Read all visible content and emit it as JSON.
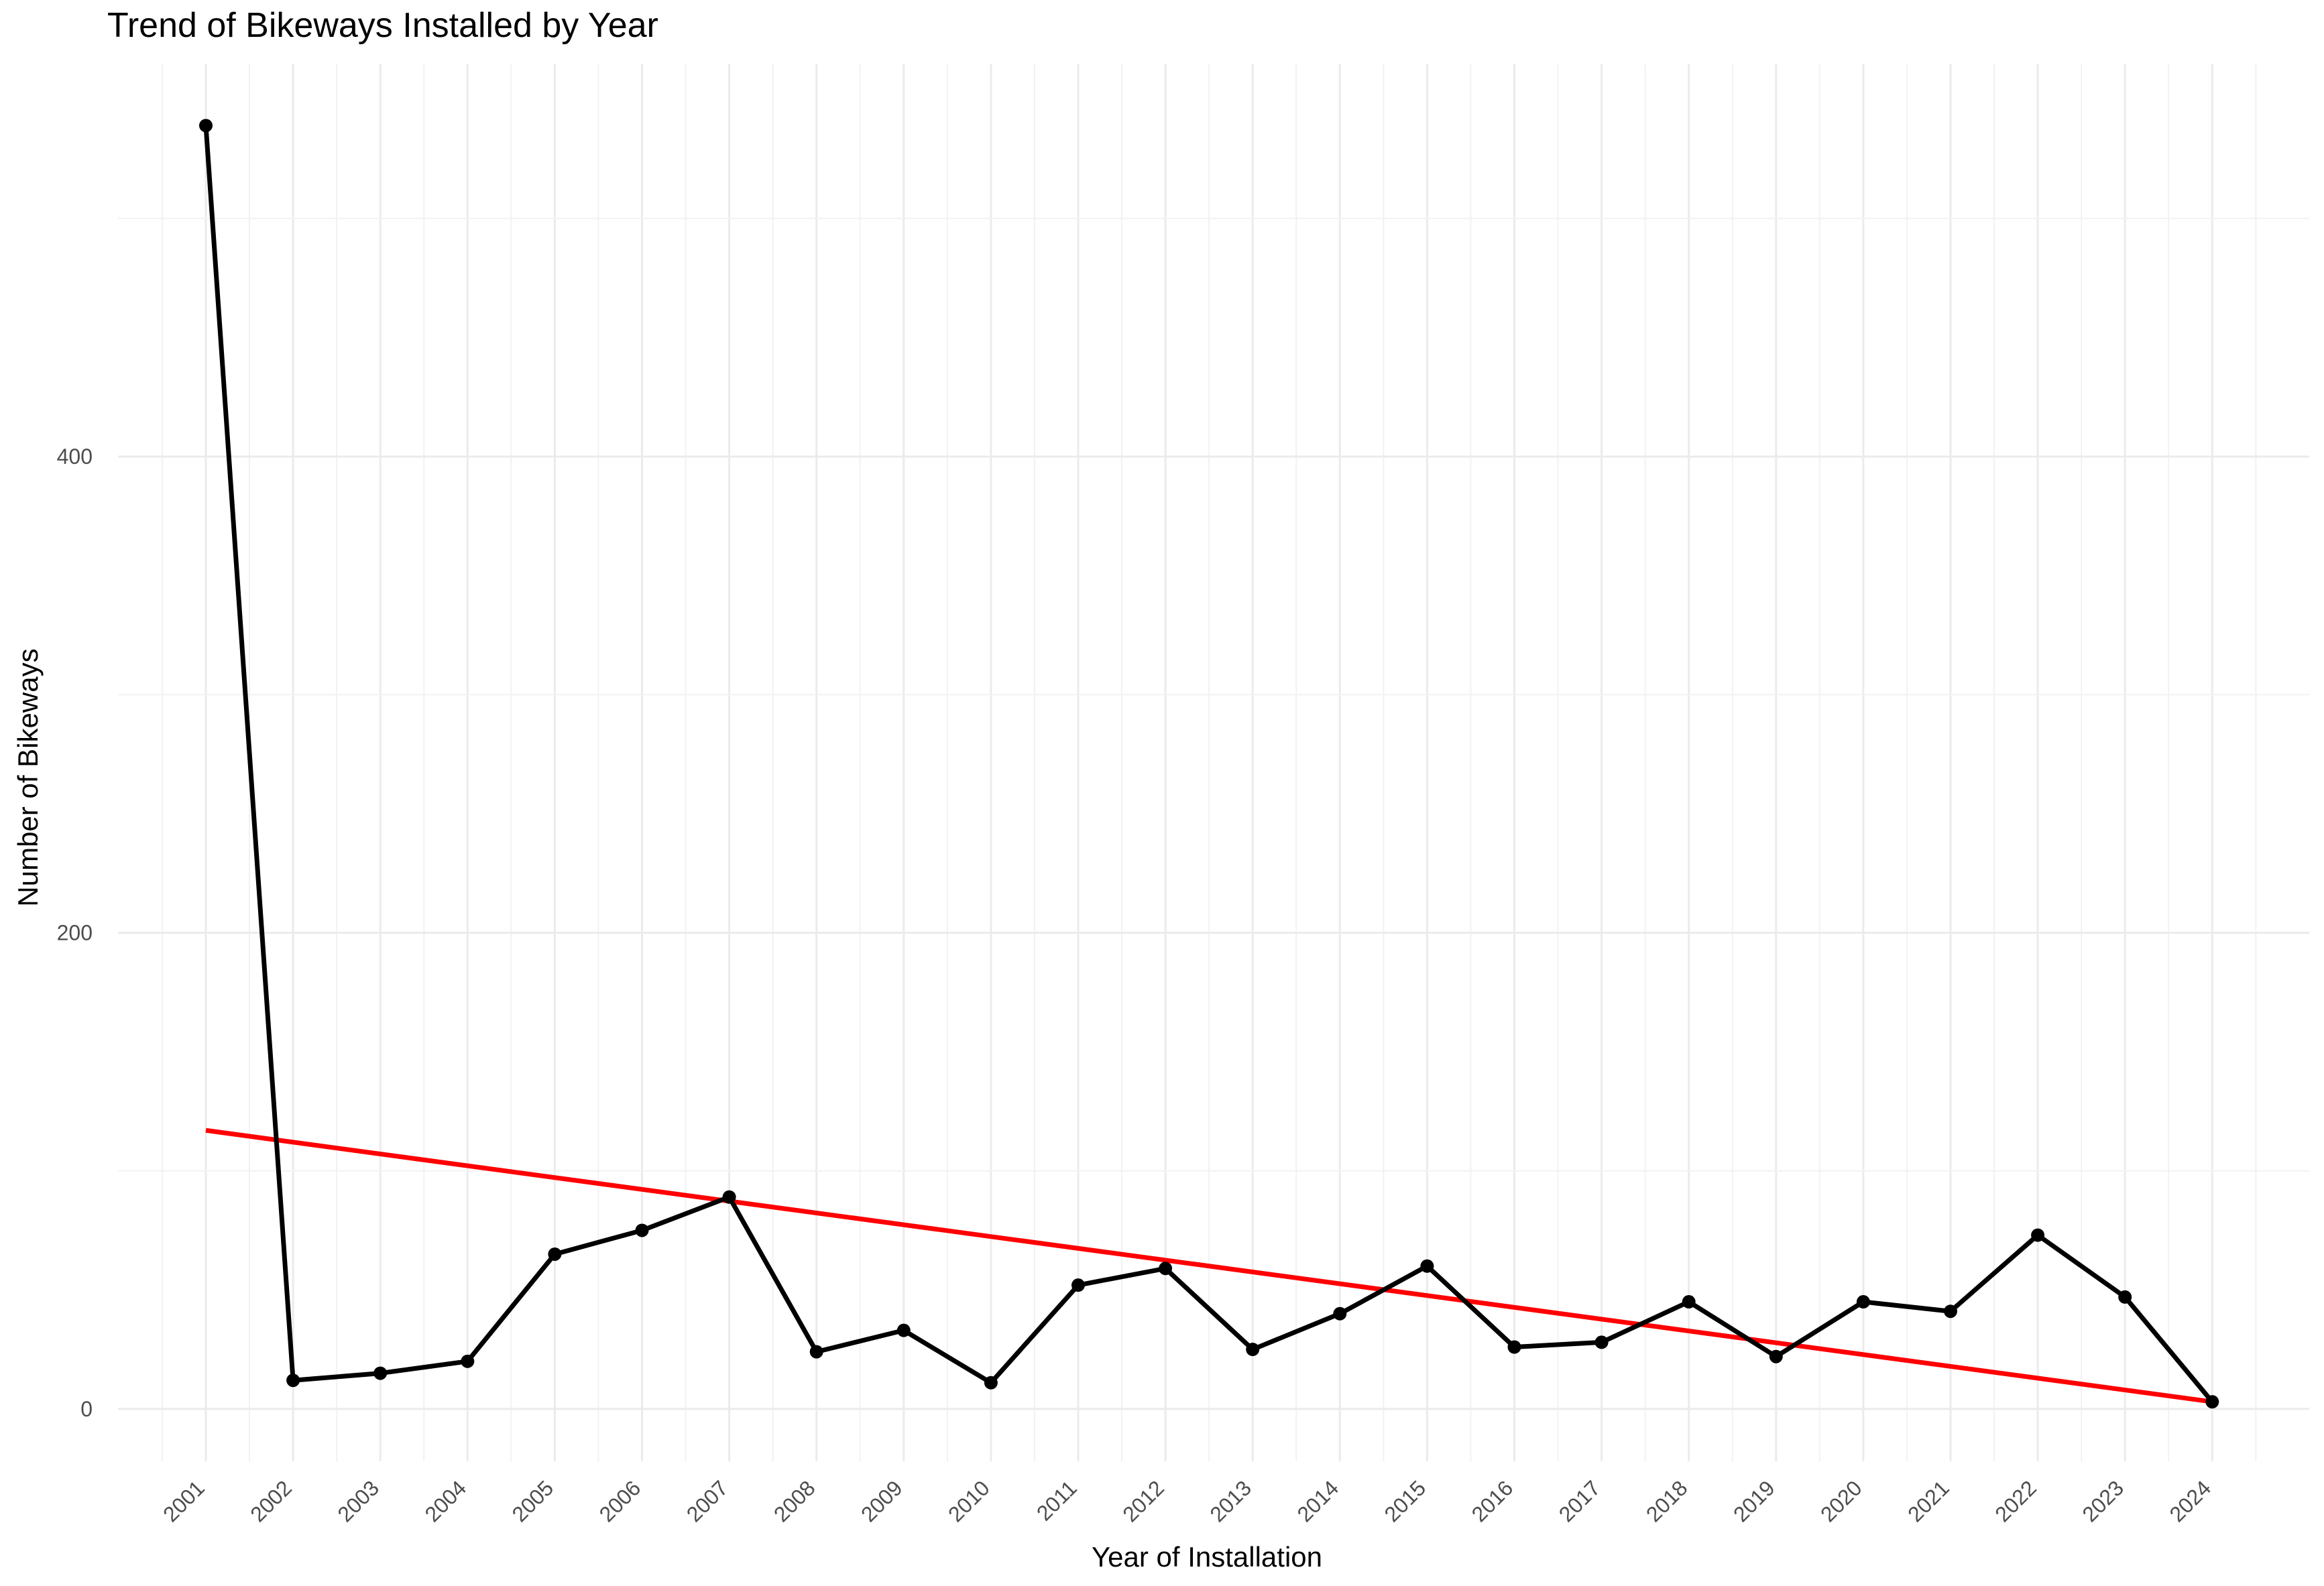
{
  "chart_data": {
    "type": "line",
    "title": "Trend of Bikeways Installed by Year",
    "xlabel": "Year of Installation",
    "ylabel": "Number of Bikeways",
    "categories": [
      "2001",
      "2002",
      "2003",
      "2004",
      "2005",
      "2006",
      "2007",
      "2008",
      "2009",
      "2010",
      "2011",
      "2012",
      "2013",
      "2014",
      "2015",
      "2016",
      "2017",
      "2018",
      "2019",
      "2020",
      "2021",
      "2022",
      "2023",
      "2024"
    ],
    "series": [
      {
        "values": [
          539,
          12,
          15,
          20,
          65,
          75,
          89,
          24,
          33,
          11,
          52,
          59,
          25,
          40,
          60,
          26,
          28,
          45,
          22,
          45,
          41,
          73,
          47,
          3
        ],
        "color": "#000000"
      }
    ],
    "trend_line": {
      "start": [
        2001,
        117
      ],
      "end": [
        2024,
        3
      ],
      "color": "#ff0000"
    },
    "yticks": [
      0,
      200,
      400
    ],
    "ylim": [
      -22,
      565
    ],
    "grid": true
  }
}
